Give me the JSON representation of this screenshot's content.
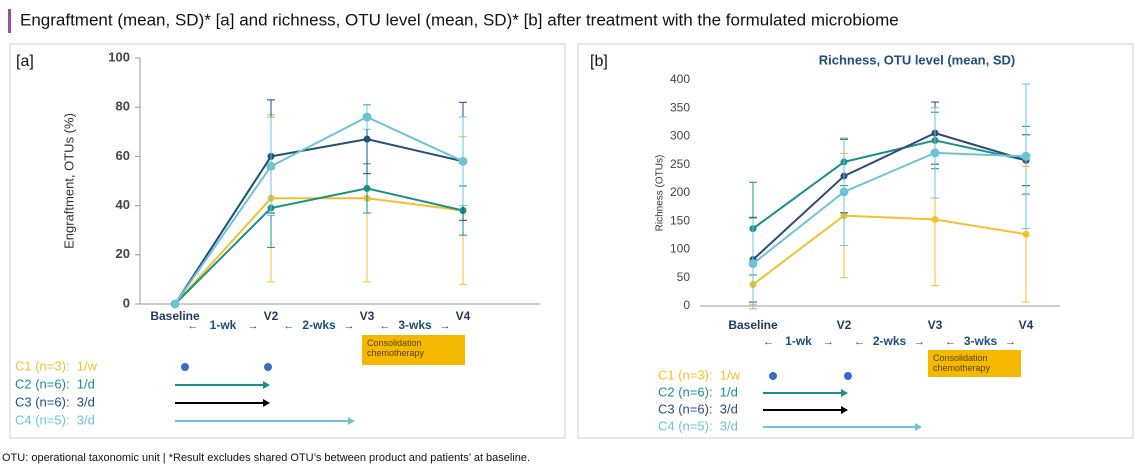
{
  "title": "Engraftment (mean, SD)* [a] and richness, OTU level (mean, SD)* [b] after treatment with the formulated microbiome",
  "footnote": "OTU: operational taxonomic unit |   *Result excludes shared OTU’s between product and patients’ at baseline.",
  "chart_data": [
    {
      "type": "line",
      "panel_label": "[a]",
      "ylabel": "Engraftment, OTUs (%)",
      "categories": [
        "Baseline",
        "V2",
        "V3",
        "V4"
      ],
      "ylim": [
        0,
        100
      ],
      "yticks": [
        0,
        20,
        40,
        60,
        80,
        100
      ],
      "intervals": [
        "1-wk",
        "2-wks",
        "3-wks"
      ],
      "annotation": "Consolidation chemotherapy",
      "series": [
        {
          "name": "C1 (n=3):  1/w",
          "color": "#f2c12e",
          "values": [
            0,
            43,
            43,
            38
          ],
          "errors": [
            0,
            34,
            34,
            30
          ]
        },
        {
          "name": "C2 (n=6):  1/d",
          "color": "#1a9088",
          "values": [
            0,
            39,
            47,
            38
          ],
          "errors": [
            0,
            16,
            10,
            10
          ]
        },
        {
          "name": "C3 (n=6):  3/d",
          "color": "#1f4e79",
          "values": [
            0,
            60,
            67,
            58
          ],
          "errors": [
            0,
            23,
            14,
            24
          ]
        },
        {
          "name": "C4 (n=5):  3/d",
          "color": "#6cc4d4",
          "values": [
            0,
            56,
            76,
            58
          ],
          "errors": [
            0,
            20,
            5,
            18
          ]
        }
      ]
    },
    {
      "type": "line",
      "panel_label": "[b]",
      "title": "Richness, OTU level (mean, SD)",
      "ylabel": "Richness (OTUs)",
      "categories": [
        "Baseline",
        "V2",
        "V3",
        "V4"
      ],
      "ylim": [
        0,
        400
      ],
      "yticks": [
        0,
        50,
        100,
        150,
        200,
        250,
        300,
        350,
        400
      ],
      "intervals": [
        "1-wk",
        "2-wks",
        "3-wks"
      ],
      "annotation": "Consolidation chemotherapy",
      "series": [
        {
          "name": "C1 (n=3):  1/w",
          "color": "#f2c12e",
          "values": [
            38,
            160,
            153,
            127
          ],
          "errors": [
            35,
            110,
            117,
            120
          ]
        },
        {
          "name": "C2 (n=6):  1/d",
          "color": "#1a9088",
          "values": [
            137,
            255,
            293,
            258
          ],
          "errors": [
            82,
            42,
            50,
            60
          ]
        },
        {
          "name": "C3 (n=6):  3/d",
          "color": "#2f4a7a",
          "values": [
            82,
            230,
            306,
            258
          ],
          "errors": [
            75,
            65,
            55,
            45
          ]
        },
        {
          "name": "C4 (n=5):  3/d",
          "color": "#6cc4d4",
          "values": [
            75,
            202,
            271,
            265
          ],
          "errors": [
            80,
            95,
            80,
            128
          ]
        }
      ]
    }
  ]
}
